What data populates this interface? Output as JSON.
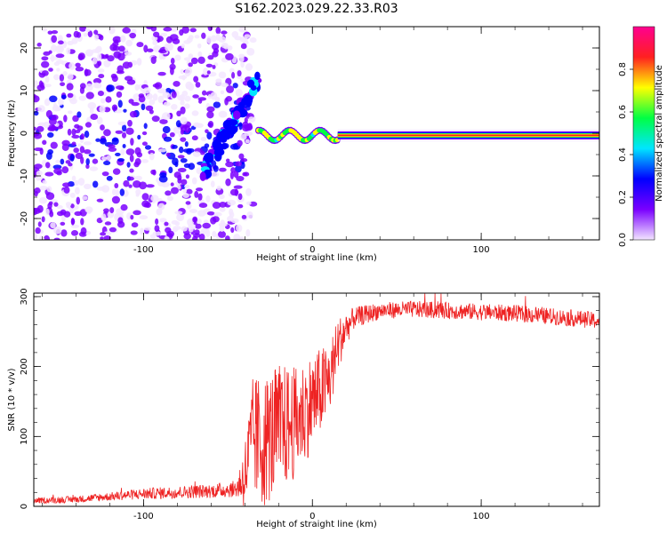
{
  "title": "S162.2023.029.22.33.R03",
  "chart_data": [
    {
      "type": "heatmap",
      "xlabel": "Height of straight line (km)",
      "ylabel": "Frequency (Hz)",
      "xlim": [
        -165,
        170
      ],
      "ylim": [
        -25,
        25
      ],
      "x_ticks": [
        -100,
        0,
        100
      ],
      "y_ticks": [
        -20,
        -10,
        0,
        10,
        20
      ],
      "colorbar": {
        "label": "Normalized spectral amplitude",
        "range": [
          0,
          1
        ],
        "ticks": [
          "0.0",
          "0.2",
          "0.4",
          "0.6",
          "0.8"
        ],
        "colors": [
          "#f3e6ff",
          "#7a00ff",
          "#0000ff",
          "#00e5ff",
          "#00ff44",
          "#ffff00",
          "#ff2020",
          "#ff0090"
        ]
      },
      "regions": [
        {
          "name": "scattered noise",
          "x_range": [
            -165,
            -35
          ],
          "y_range": [
            -25,
            25
          ],
          "level": 0.2
        },
        {
          "name": "rising feature",
          "x_range": [
            -65,
            -32
          ],
          "y_range": [
            -10,
            13
          ],
          "level": 0.35
        },
        {
          "name": "transition",
          "x_range": [
            -32,
            15
          ],
          "y_range": [
            -2,
            2
          ],
          "level": 0.5
        },
        {
          "name": "carrier line",
          "x_range": [
            15,
            170
          ],
          "y_range": [
            -1,
            0
          ],
          "level": 0.95
        }
      ]
    },
    {
      "type": "line",
      "xlabel": "Height of straight line (km)",
      "ylabel": "SNR (10 * v/v)",
      "xlim": [
        -165,
        170
      ],
      "ylim": [
        0,
        305
      ],
      "x_ticks": [
        -100,
        0,
        100
      ],
      "y_ticks": [
        0,
        100,
        200,
        300
      ],
      "color": "#ee2222",
      "envelope_x": [
        -165,
        -140,
        -120,
        -100,
        -80,
        -60,
        -45,
        -40,
        -35,
        -30,
        -20,
        -10,
        0,
        10,
        15,
        20,
        25,
        40,
        60,
        80,
        100,
        120,
        140,
        160,
        170
      ],
      "envelope_y": [
        8,
        10,
        14,
        18,
        20,
        22,
        25,
        45,
        100,
        90,
        110,
        120,
        150,
        180,
        230,
        255,
        270,
        280,
        282,
        280,
        278,
        276,
        272,
        268,
        265
      ],
      "noise_amplitude": [
        4,
        5,
        6,
        8,
        9,
        10,
        12,
        50,
        90,
        95,
        95,
        80,
        70,
        55,
        40,
        25,
        15,
        12,
        12,
        12,
        12,
        12,
        12,
        12,
        12
      ]
    }
  ]
}
